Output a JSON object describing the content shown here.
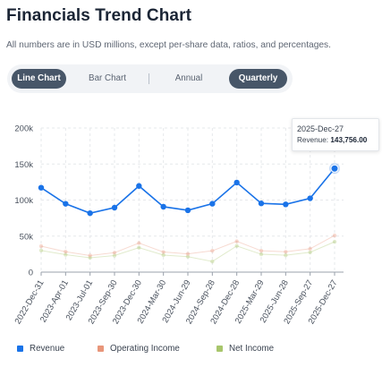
{
  "header": {
    "title": "Financials Trend Chart",
    "subtitle": "All numbers are in USD millions, except per-share data, ratios, and percentages."
  },
  "toggles": {
    "line_chart": "Line Chart",
    "bar_chart": "Bar Chart",
    "annual": "Annual",
    "quarterly": "Quarterly"
  },
  "tooltip": {
    "date": "2025-Dec-27",
    "metric_label": "Revenue:",
    "metric_value": "143,756.00"
  },
  "colors": {
    "revenue": "#1a73e8",
    "operating_income": "#e8967a",
    "net_income": "#a8c66c",
    "grid": "#e6e8eb"
  },
  "chart_data": {
    "type": "line",
    "x": [
      "2022-Dec-31",
      "2023-Apr-01",
      "2023-Jul-01",
      "2023-Sep-30",
      "2023-Dec-30",
      "2024-Mar-30",
      "2024-Jun-29",
      "2024-Sep-28",
      "2024-Dec-28",
      "2025-Mar-29",
      "2025-Jun-28",
      "2025-Sep-27",
      "2025-Dec-27"
    ],
    "ylim": [
      0,
      200000
    ],
    "y_ticks": [
      "0",
      "50k",
      "100k",
      "150k",
      "200k"
    ],
    "series": [
      {
        "name": "Revenue",
        "values": [
          117154,
          94836,
          81797,
          89498,
          119575,
          90753,
          85777,
          94930,
          124300,
          95359,
          94036,
          102466,
          143756
        ]
      },
      {
        "name": "Operating Income",
        "values": [
          36016,
          28318,
          22998,
          26969,
          40373,
          27900,
          25352,
          29591,
          42832,
          29589,
          28202,
          32427,
          50852
        ]
      },
      {
        "name": "Net Income",
        "values": [
          29998,
          24160,
          19881,
          22956,
          33916,
          23636,
          21448,
          14736,
          36330,
          24780,
          23434,
          27466,
          42097
        ]
      }
    ],
    "grid": true,
    "legend_position": "bottom-left"
  },
  "legend": [
    {
      "label": "Revenue"
    },
    {
      "label": "Operating Income"
    },
    {
      "label": "Net Income"
    }
  ]
}
